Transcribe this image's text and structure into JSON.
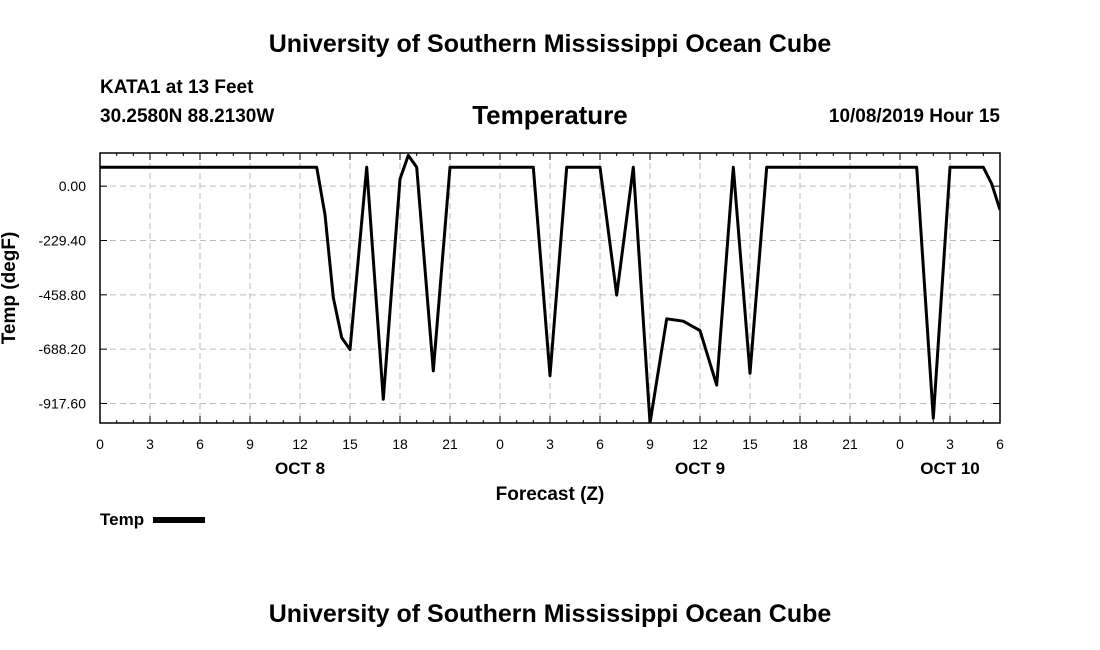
{
  "header": {
    "org_title": "University of Southern Mississippi Ocean Cube",
    "station": "KATA1 at 13 Feet",
    "coords": "30.2580N 88.2130W",
    "datetime": "10/08/2019 Hour 15",
    "footer_title": "University of Southern Mississippi Ocean Cube"
  },
  "legend": {
    "label": "Temp",
    "color": "#000000"
  },
  "chart_data": {
    "type": "line",
    "title": "Temperature",
    "xlabel": "Forecast (Z)",
    "ylabel": "Temp (degF)",
    "ylim": [
      -1000,
      140
    ],
    "xlim": [
      0,
      54
    ],
    "grid": true,
    "y_ticks": [
      0,
      -229.4,
      -458.8,
      -688.2,
      -917.6
    ],
    "y_tick_labels": [
      "0.00",
      "-229.40",
      "-458.80",
      "-688.20",
      "-917.60"
    ],
    "x_ticks": [
      0,
      3,
      6,
      9,
      12,
      15,
      18,
      21,
      24,
      27,
      30,
      33,
      36,
      39,
      42,
      45,
      48,
      51,
      54
    ],
    "x_tick_labels": [
      "0",
      "3",
      "6",
      "9",
      "12",
      "15",
      "18",
      "21",
      "0",
      "3",
      "6",
      "9",
      "12",
      "15",
      "18",
      "21",
      "0",
      "3",
      "6"
    ],
    "day_labels": [
      {
        "x": 12,
        "label": "OCT 8"
      },
      {
        "x": 36,
        "label": "OCT 9"
      },
      {
        "x": 51,
        "label": "OCT 10"
      }
    ],
    "series": [
      {
        "name": "Temp",
        "color": "#000000",
        "x": [
          0,
          13,
          13.5,
          14,
          14.5,
          15,
          16,
          17,
          18,
          18.5,
          19,
          20,
          21,
          26,
          27,
          28,
          30,
          31,
          32,
          33,
          34,
          35,
          36,
          37,
          38,
          39,
          40,
          41,
          42,
          43,
          49,
          50,
          51,
          53,
          53.5,
          54
        ],
        "y": [
          80,
          80,
          -120,
          -470,
          -640,
          -690,
          80,
          -900,
          30,
          130,
          80,
          -780,
          80,
          80,
          -800,
          80,
          80,
          -460,
          80,
          -1000,
          -560,
          -570,
          -610,
          -840,
          80,
          -790,
          80,
          80,
          80,
          80,
          80,
          -980,
          80,
          80,
          10,
          -100
        ]
      }
    ]
  }
}
